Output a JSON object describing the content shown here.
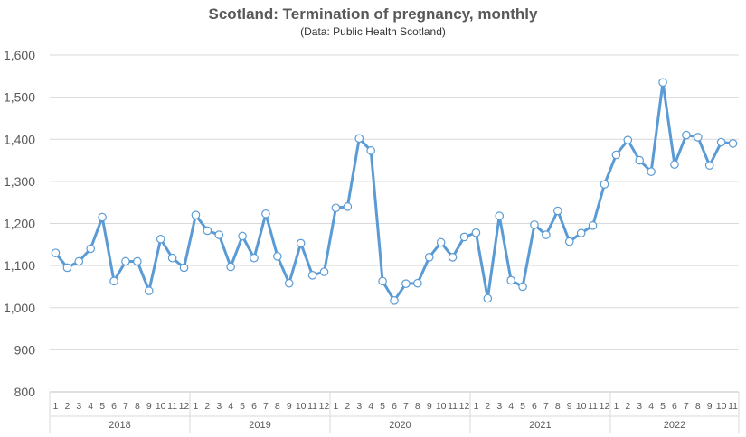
{
  "chart_data": {
    "type": "line",
    "title": "Scotland: Termination of pregnancy, monthly",
    "subtitle": "(Data: Public Health Scotland)",
    "ylim": [
      800,
      1600
    ],
    "yticks": [
      800,
      900,
      1000,
      1100,
      1200,
      1300,
      1400,
      1500,
      1600
    ],
    "ytick_labels": [
      "800",
      "900",
      "1,000",
      "1,100",
      "1,200",
      "1,300",
      "1,400",
      "1,500",
      "1,600"
    ],
    "grid": true,
    "legend": "none",
    "line_color": "#5B9BD5",
    "years": [
      {
        "label": "2018",
        "months": [
          "1",
          "2",
          "3",
          "4",
          "5",
          "6",
          "7",
          "8",
          "9",
          "10",
          "11",
          "12"
        ]
      },
      {
        "label": "2019",
        "months": [
          "1",
          "2",
          "3",
          "4",
          "5",
          "6",
          "7",
          "8",
          "9",
          "10",
          "11",
          "12"
        ]
      },
      {
        "label": "2020",
        "months": [
          "1",
          "2",
          "3",
          "4",
          "5",
          "6",
          "7",
          "8",
          "9",
          "10",
          "11",
          "12"
        ]
      },
      {
        "label": "2021",
        "months": [
          "1",
          "2",
          "3",
          "4",
          "5",
          "6",
          "7",
          "8",
          "9",
          "10",
          "11",
          "12"
        ]
      },
      {
        "label": "2022",
        "months": [
          "1",
          "2",
          "3",
          "4",
          "5",
          "6",
          "7",
          "8",
          "9",
          "10",
          "11"
        ]
      }
    ],
    "series": [
      {
        "values": [
          1130,
          1095,
          1110,
          1140,
          1215,
          1063,
          1110,
          1110,
          1040,
          1163,
          1118,
          1095,
          1220,
          1183,
          1173,
          1097,
          1170,
          1118,
          1223,
          1122,
          1058,
          1153,
          1077,
          1085,
          1237,
          1240,
          1402,
          1373,
          1063,
          1017,
          1057,
          1058,
          1120,
          1155,
          1120,
          1168,
          1178,
          1022,
          1218,
          1065,
          1050,
          1197,
          1173,
          1230,
          1157,
          1177,
          1195,
          1293,
          1363,
          1398,
          1350,
          1323,
          1535,
          1340,
          1410,
          1405,
          1338,
          1393,
          1390
        ]
      }
    ]
  }
}
